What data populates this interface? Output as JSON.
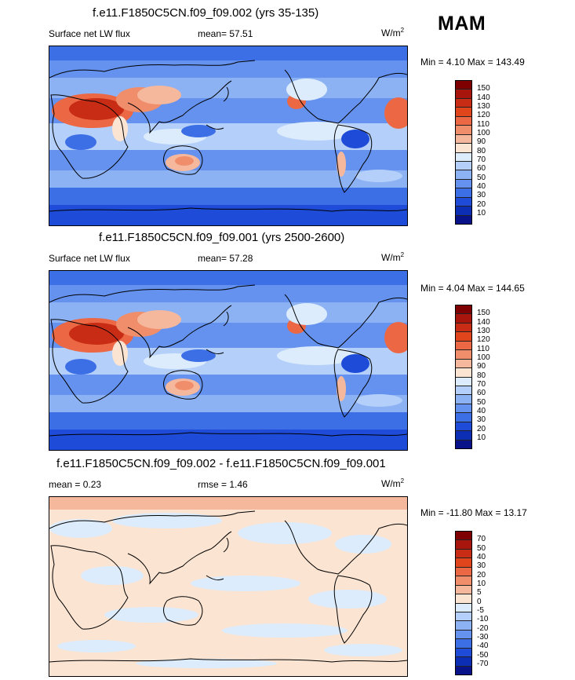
{
  "season": "MAM",
  "panels": [
    {
      "title": "f.e11.F1850C5CN.f09_f09.002 (yrs 35-135)",
      "left_label": "Surface net LW flux",
      "mean_text": "mean=  57.51",
      "units": "W/m",
      "units_sup": "2",
      "minmax": "Min =  4.10 Max = 143.49",
      "levels": [
        "150",
        "140",
        "130",
        "120",
        "110",
        "100",
        "90",
        "80",
        "70",
        "60",
        "50",
        "40",
        "30",
        "20",
        "10"
      ],
      "colors": [
        "#7f0000",
        "#a8150c",
        "#c82c14",
        "#e0451c",
        "#ec6844",
        "#f08e6c",
        "#f6b89c",
        "#fbe4d2",
        "#dcecfc",
        "#b4cffa",
        "#8cb2f4",
        "#6492ee",
        "#3c6ee6",
        "#1e4cd8",
        "#0c2eb4",
        "#08138a"
      ]
    },
    {
      "title": "f.e11.F1850C5CN.f09_f09.001 (yrs 2500-2600)",
      "left_label": "Surface net LW flux",
      "mean_text": "mean=  57.28",
      "units": "W/m",
      "units_sup": "2",
      "minmax": "Min =  4.04 Max = 144.65",
      "levels": [
        "150",
        "140",
        "130",
        "120",
        "110",
        "100",
        "90",
        "80",
        "70",
        "60",
        "50",
        "40",
        "30",
        "20",
        "10"
      ],
      "colors": [
        "#7f0000",
        "#a8150c",
        "#c82c14",
        "#e0451c",
        "#ec6844",
        "#f08e6c",
        "#f6b89c",
        "#fbe4d2",
        "#dcecfc",
        "#b4cffa",
        "#8cb2f4",
        "#6492ee",
        "#3c6ee6",
        "#1e4cd8",
        "#0c2eb4",
        "#08138a"
      ]
    },
    {
      "title": "f.e11.F1850C5CN.f09_f09.002 - f.e11.F1850C5CN.f09_f09.001",
      "left_label": "mean =  0.23",
      "mean_text": "rmse =  1.46",
      "units": "W/m",
      "units_sup": "2",
      "minmax": "Min = -11.80 Max =  13.17",
      "levels": [
        "70",
        "50",
        "40",
        "30",
        "20",
        "10",
        "5",
        "0",
        "-5",
        "-10",
        "-20",
        "-30",
        "-40",
        "-50",
        "-70"
      ],
      "colors": [
        "#7f0000",
        "#a8150c",
        "#c82c14",
        "#e0451c",
        "#ec6844",
        "#f08e6c",
        "#f6b89c",
        "#fbe4d2",
        "#dcecfc",
        "#b4cffa",
        "#8cb2f4",
        "#6492ee",
        "#3c6ee6",
        "#1e4cd8",
        "#0c2eb4",
        "#08138a"
      ]
    }
  ],
  "chart_data": [
    {
      "type": "heatmap",
      "title": "f.e11.F1850C5CN.f09_f09.002 (yrs 35-135)",
      "variable": "Surface net LW flux",
      "units": "W/m2",
      "mean": 57.51,
      "min": 4.1,
      "max": 143.49,
      "contour_levels": [
        10,
        20,
        30,
        40,
        50,
        60,
        70,
        80,
        90,
        100,
        110,
        120,
        130,
        140,
        150
      ]
    },
    {
      "type": "heatmap",
      "title": "f.e11.F1850C5CN.f09_f09.001 (yrs 2500-2600)",
      "variable": "Surface net LW flux",
      "units": "W/m2",
      "mean": 57.28,
      "min": 4.04,
      "max": 144.65,
      "contour_levels": [
        10,
        20,
        30,
        40,
        50,
        60,
        70,
        80,
        90,
        100,
        110,
        120,
        130,
        140,
        150
      ]
    },
    {
      "type": "heatmap",
      "title": "f.e11.F1850C5CN.f09_f09.002 - f.e11.F1850C5CN.f09_f09.001",
      "units": "W/m2",
      "mean": 0.23,
      "rmse": 1.46,
      "min": -11.8,
      "max": 13.17,
      "contour_levels": [
        -70,
        -50,
        -40,
        -30,
        -20,
        -10,
        -5,
        0,
        5,
        10,
        20,
        30,
        40,
        50,
        70
      ]
    }
  ]
}
